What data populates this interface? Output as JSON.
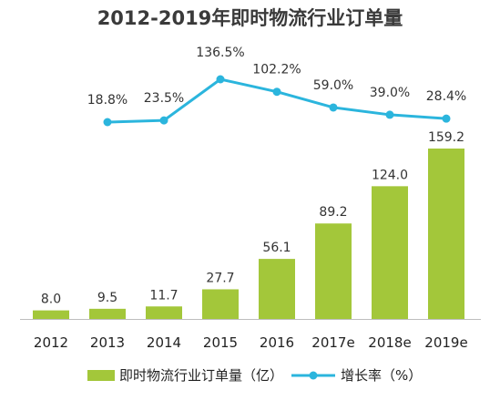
{
  "chart_data": {
    "type": "bar",
    "title": "2012-2019年即时物流行业订单量",
    "categories": [
      "2012",
      "2013",
      "2014",
      "2015",
      "2016",
      "2017e",
      "2018e",
      "2019e"
    ],
    "series": [
      {
        "name": "即时物流行业订单量（亿）",
        "type": "bar",
        "color": "#a3c73a",
        "values": [
          8.0,
          9.5,
          11.7,
          27.7,
          56.1,
          89.2,
          124.0,
          159.2
        ],
        "labels": [
          "8.0",
          "9.5",
          "11.7",
          "27.7",
          "56.1",
          "89.2",
          "124.0",
          "159.2"
        ]
      },
      {
        "name": "增长率（%）",
        "type": "line",
        "color": "#2bb5dd",
        "x": [
          "2013",
          "2014",
          "2015",
          "2016",
          "2017e",
          "2018e",
          "2019e"
        ],
        "values": [
          18.8,
          23.5,
          136.5,
          102.2,
          59.0,
          39.0,
          28.4
        ],
        "labels": [
          "18.8%",
          "23.5%",
          "136.5%",
          "102.2%",
          "59.0%",
          "39.0%",
          "28.4%"
        ]
      }
    ],
    "legend_position": "bottom",
    "grid": false
  }
}
